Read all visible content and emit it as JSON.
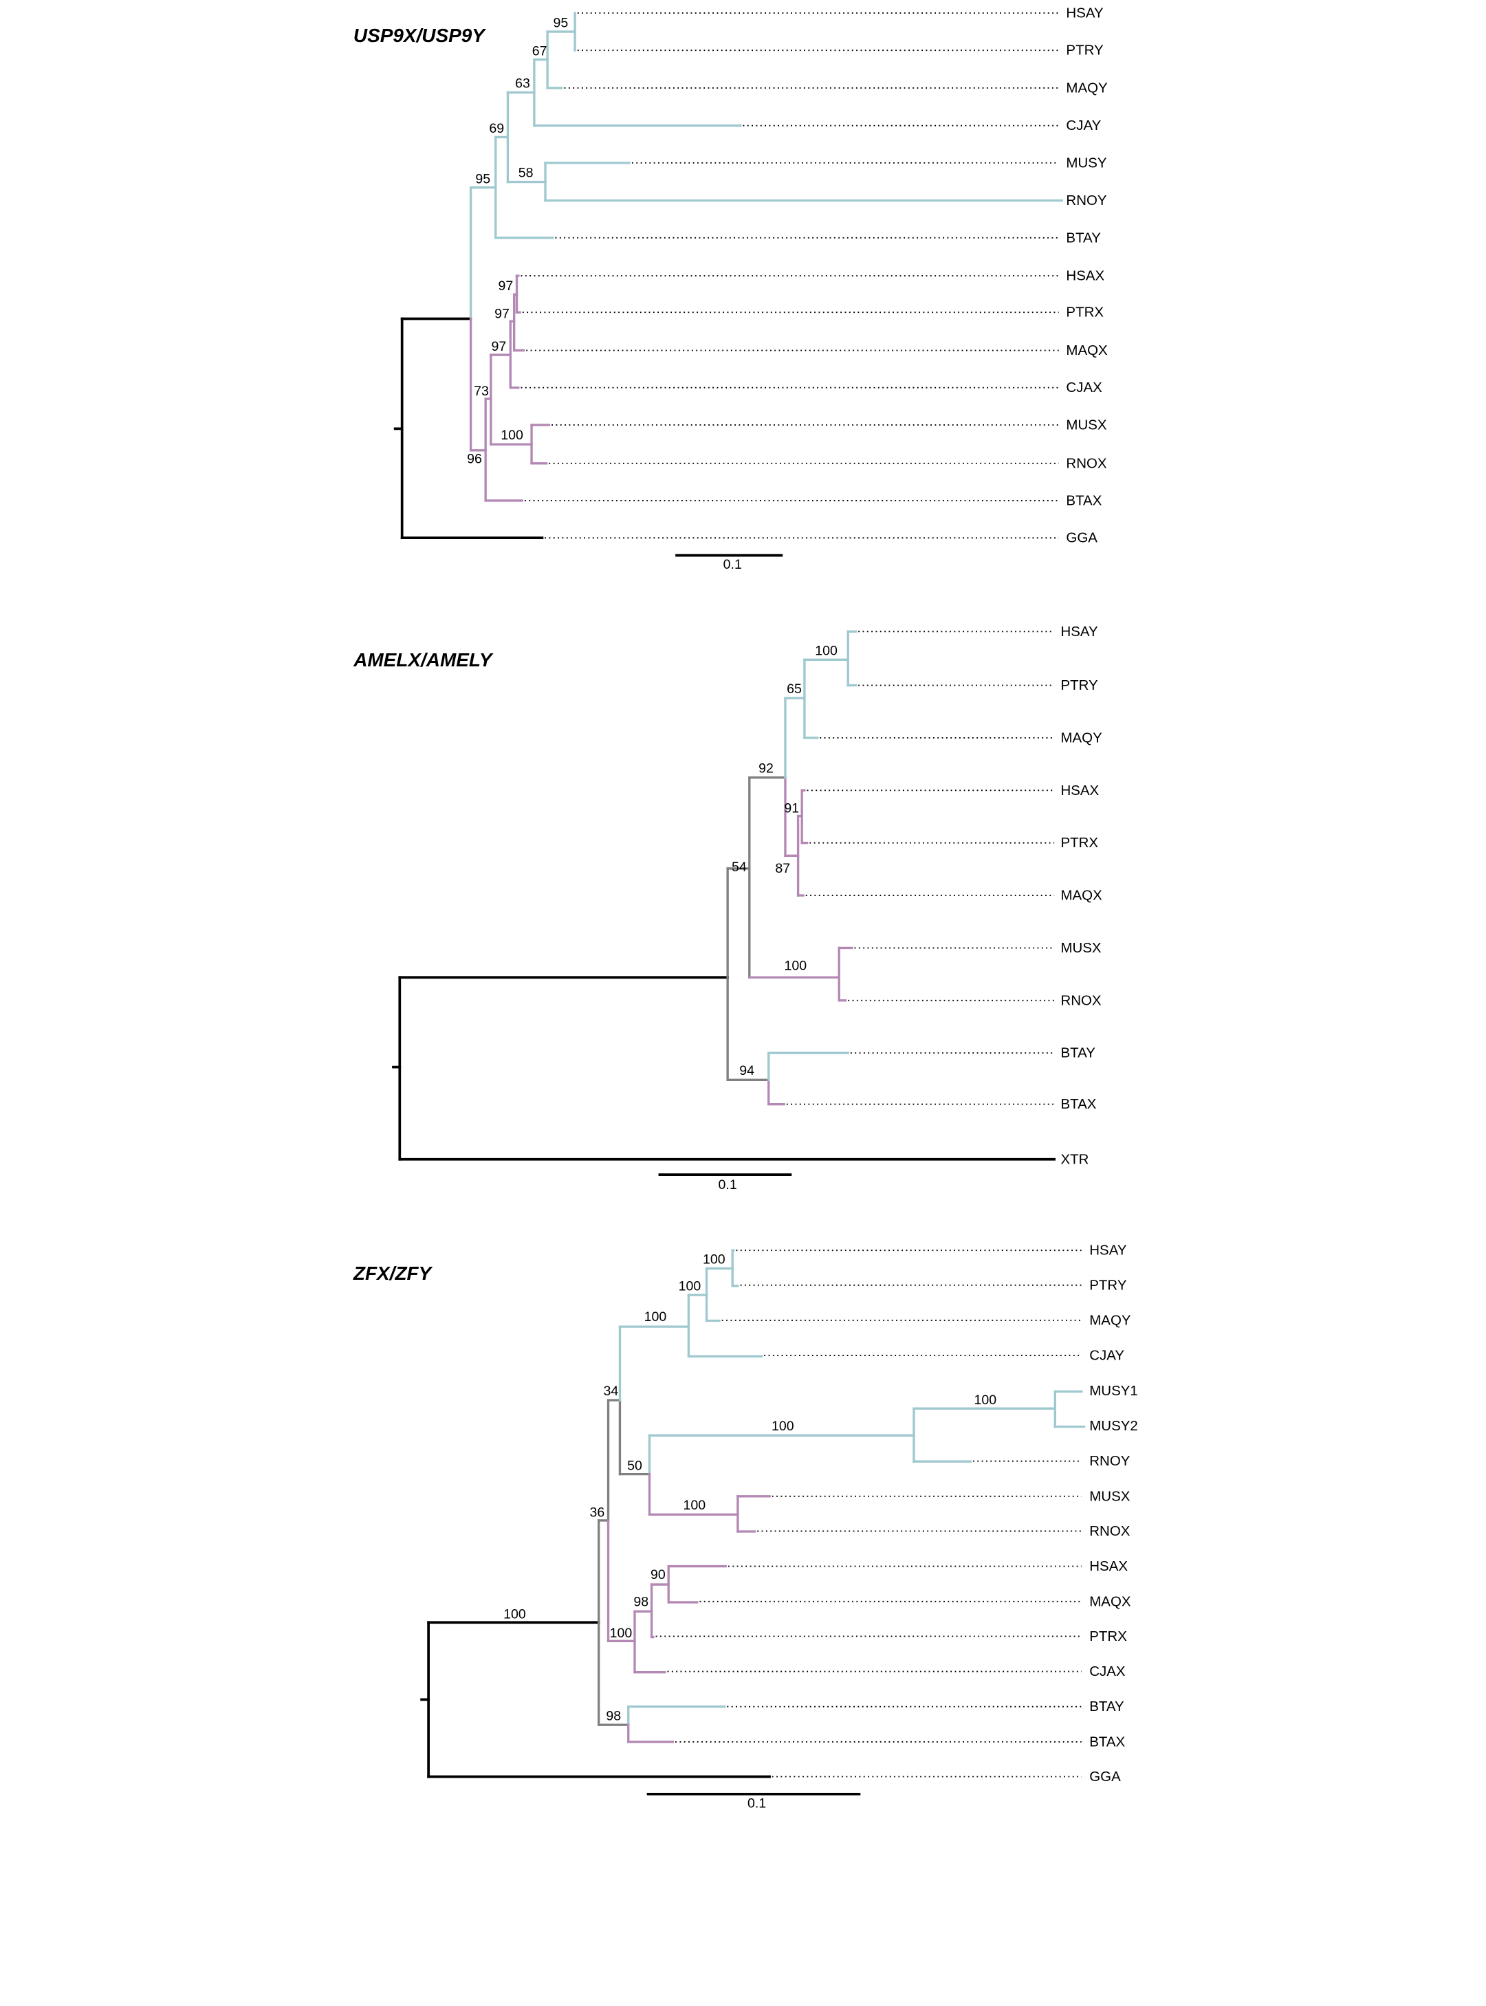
{
  "colors": {
    "y_lineage": "#9fc8cf",
    "x_lineage": "#b488b4",
    "ancestral": "#808080",
    "outgroup": "#000000"
  },
  "panels": [
    {
      "title": "USP9X/USP9Y",
      "taxa": [
        "HSAY",
        "PTRY",
        "MAQY",
        "CJAY",
        "MUSY",
        "RNOY",
        "BTAY",
        "HSAX",
        "PTRX",
        "MAQX",
        "CJAX",
        "MUSX",
        "RNOX",
        "BTAX",
        "GGA"
      ],
      "bootstraps": [
        "95",
        "67",
        "63",
        "69",
        "95",
        "58",
        "97",
        "97",
        "97",
        "73",
        "100",
        "96"
      ],
      "scale_label": "0.1"
    },
    {
      "title": "AMELX/AMELY",
      "taxa": [
        "HSAY",
        "PTRY",
        "MAQY",
        "HSAX",
        "PTRX",
        "MAQX",
        "MUSX",
        "RNOX",
        "BTAY",
        "BTAX",
        "XTR"
      ],
      "bootstraps": [
        "100",
        "65",
        "92",
        "91",
        "87",
        "54",
        "100",
        "94"
      ],
      "scale_label": "0.1"
    },
    {
      "title": "ZFX/ZFY",
      "taxa": [
        "HSAY",
        "PTRY",
        "MAQY",
        "CJAY",
        "MUSY1",
        "MUSY2",
        "RNOY",
        "MUSX",
        "RNOX",
        "HSAX",
        "MAQX",
        "PTRX",
        "CJAX",
        "BTAY",
        "BTAX",
        "GGA"
      ],
      "bootstraps": [
        "100",
        "100",
        "100",
        "34",
        "100",
        "100",
        "50",
        "100",
        "36",
        "90",
        "98",
        "100",
        "98",
        "100"
      ],
      "scale_label": "0.1"
    }
  ]
}
